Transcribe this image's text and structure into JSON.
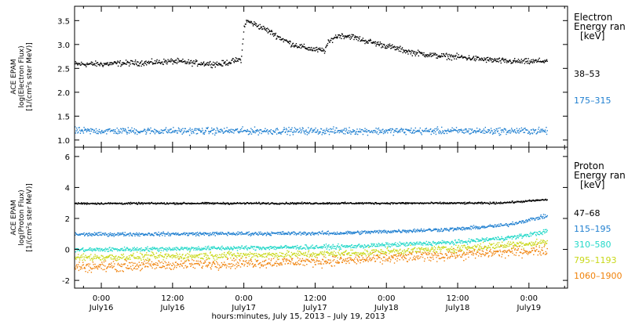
{
  "chart_data": [
    {
      "type": "scatter",
      "ylabel_lines": [
        "ACE EPAM",
        "log(Electron Flux)",
        "[1/(cm²s ster MeV)]"
      ],
      "ylim": [
        0.85,
        3.8
      ],
      "yticks": [
        1.0,
        1.5,
        2.0,
        2.5,
        3.0,
        3.5
      ],
      "legend_title": [
        "Electron",
        "Energy ran",
        "[keV]"
      ],
      "series": [
        {
          "name": "38–53",
          "color": "#000000",
          "noise": 0.05,
          "points": [
            [
              -4.5,
              2.6
            ],
            [
              0,
              2.6
            ],
            [
              4,
              2.62
            ],
            [
              8,
              2.63
            ],
            [
              12,
              2.66
            ],
            [
              16,
              2.62
            ],
            [
              20,
              2.6
            ],
            [
              23.5,
              2.7
            ],
            [
              24.0,
              3.42
            ],
            [
              24.5,
              3.5
            ],
            [
              26,
              3.42
            ],
            [
              28,
              3.3
            ],
            [
              30,
              3.15
            ],
            [
              32,
              3.02
            ],
            [
              34,
              2.95
            ],
            [
              36,
              2.9
            ],
            [
              37.5,
              2.88
            ],
            [
              38,
              3.02
            ],
            [
              39,
              3.15
            ],
            [
              40,
              3.2
            ],
            [
              42,
              3.18
            ],
            [
              44,
              3.1
            ],
            [
              48,
              2.98
            ],
            [
              52,
              2.85
            ],
            [
              56,
              2.78
            ],
            [
              60,
              2.75
            ],
            [
              64,
              2.7
            ],
            [
              68,
              2.66
            ],
            [
              72,
              2.65
            ],
            [
              75,
              2.67
            ]
          ]
        },
        {
          "name": "175–315",
          "color": "#1f7fd0",
          "noise": 0.06,
          "points": [
            [
              -4.5,
              1.2
            ],
            [
              75,
              1.2
            ]
          ]
        }
      ]
    },
    {
      "type": "scatter",
      "ylabel_lines": [
        "ACE EPAM",
        "log(Proton Flux)",
        "[1/(cm²s ster MeV)]"
      ],
      "ylim": [
        -2.5,
        6.6
      ],
      "yticks": [
        -2,
        0,
        2,
        4,
        6
      ],
      "legend_title": [
        "Proton",
        "Energy ran",
        "[keV]"
      ],
      "xlabel": "hours:minutes, July 15, 2013 – July 19, 2013",
      "xticks": [
        {
          "h": 0,
          "time": "0:00",
          "date": "July16"
        },
        {
          "h": 12,
          "time": "12:00",
          "date": "July16"
        },
        {
          "h": 24,
          "time": "0:00",
          "date": "July17"
        },
        {
          "h": 36,
          "time": "12:00",
          "date": "July17"
        },
        {
          "h": 48,
          "time": "0:00",
          "date": "July18"
        },
        {
          "h": 60,
          "time": "12:00",
          "date": "July18"
        },
        {
          "h": 72,
          "time": "0:00",
          "date": "July19"
        }
      ],
      "xlim": [
        -4.5,
        78.5
      ],
      "series": [
        {
          "name": "47–68",
          "color": "#000000",
          "noise": 0.05,
          "points": [
            [
              -4.5,
              3.0
            ],
            [
              66,
              3.02
            ],
            [
              70,
              3.1
            ],
            [
              75,
              3.25
            ]
          ]
        },
        {
          "name": "115–195",
          "color": "#1f7fd0",
          "noise": 0.1,
          "points": [
            [
              -4.5,
              1.0
            ],
            [
              40,
              1.08
            ],
            [
              60,
              1.35
            ],
            [
              68,
              1.6
            ],
            [
              75,
              2.2
            ]
          ]
        },
        {
          "name": "310–580",
          "color": "#22d8c8",
          "noise": 0.12,
          "points": [
            [
              -4.5,
              0.0
            ],
            [
              40,
              0.2
            ],
            [
              60,
              0.5
            ],
            [
              70,
              0.85
            ],
            [
              75,
              1.2
            ]
          ]
        },
        {
          "name": "795–1193",
          "color": "#c8d818",
          "noise": 0.2,
          "points": [
            [
              -4.5,
              -0.5
            ],
            [
              40,
              -0.25
            ],
            [
              60,
              0.1
            ],
            [
              75,
              0.5
            ]
          ]
        },
        {
          "name": "1060–1900",
          "color": "#f0820a",
          "noise": 0.28,
          "points": [
            [
              -4.5,
              -1.1
            ],
            [
              40,
              -0.7
            ],
            [
              60,
              -0.3
            ],
            [
              75,
              0.0
            ]
          ]
        }
      ]
    }
  ]
}
